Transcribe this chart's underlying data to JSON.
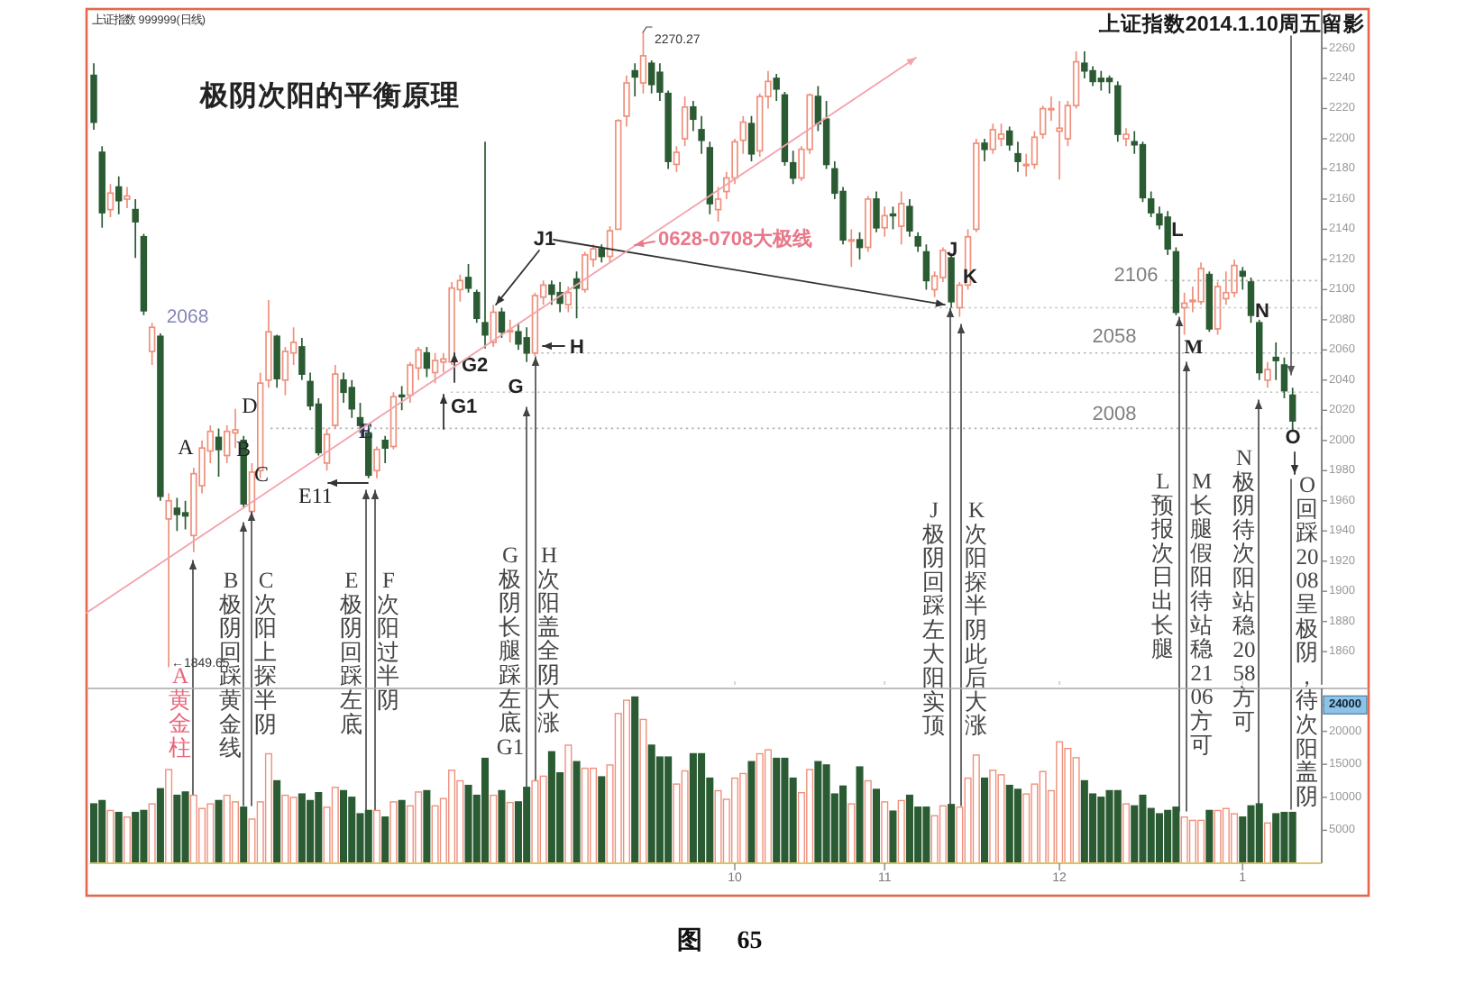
{
  "chart_data": [
    {
      "type": "candlestick",
      "title": "极阴次阳的平衡原理",
      "categories": [
        null,
        null,
        null,
        null,
        null,
        null,
        null,
        null,
        null,
        null,
        null,
        null,
        null,
        null,
        null,
        null,
        null,
        null,
        null,
        null,
        null,
        null,
        null,
        null,
        null,
        null,
        null,
        null,
        null,
        null,
        null,
        null,
        null,
        null,
        null,
        null,
        null,
        null,
        null,
        null,
        null,
        null,
        null,
        null,
        null,
        null,
        null,
        null,
        null,
        null,
        null,
        null,
        null,
        null,
        null,
        null,
        null,
        null,
        null,
        null,
        null,
        null,
        null,
        null,
        null,
        null,
        null,
        null,
        null,
        null,
        null,
        null,
        null,
        null,
        null,
        null,
        null,
        "10",
        null,
        null,
        null,
        null,
        null,
        null,
        null,
        null,
        null,
        null,
        null,
        null,
        null,
        null,
        null,
        null,
        null,
        "11",
        null,
        null,
        null,
        null,
        null,
        null,
        null,
        null,
        null,
        null,
        null,
        null,
        null,
        null,
        null,
        null,
        null,
        null,
        null,
        null,
        "12",
        null,
        null,
        null,
        null,
        null,
        null,
        null,
        null,
        null,
        null,
        null,
        null,
        null,
        null,
        null,
        null,
        null,
        null,
        null,
        null,
        null,
        "1",
        null,
        null,
        null,
        null,
        null,
        null,
        null,
        null,
        null
      ],
      "ohlc": [
        [
          2242,
          2250,
          2206,
          2211
        ],
        [
          2191,
          2195,
          2141,
          2151
        ],
        [
          2153,
          2170,
          2148,
          2164
        ],
        [
          2168,
          2175,
          2150,
          2159
        ],
        [
          2160,
          2168,
          2154,
          2162
        ],
        [
          2153,
          2160,
          2121,
          2145
        ],
        [
          2135,
          2137,
          2083,
          2086
        ],
        [
          2059,
          2078,
          2050,
          2075
        ],
        [
          2069,
          2071,
          1960,
          1963
        ],
        [
          1948,
          1965,
          1849.65,
          1960
        ],
        [
          1955,
          1962,
          1940,
          1951
        ],
        [
          1952,
          1960,
          1941,
          1950
        ],
        [
          1937,
          1982,
          1926,
          1978
        ],
        [
          1970,
          2000,
          1965,
          1995
        ],
        [
          1993,
          2010,
          1985,
          2006
        ],
        [
          2002,
          2008,
          1976,
          1994
        ],
        [
          1990,
          2010,
          1985,
          2006
        ],
        [
          2005,
          2021,
          1995,
          2007
        ],
        [
          2000,
          2003,
          1955,
          1958
        ],
        [
          1953,
          1985,
          1950,
          1979
        ],
        [
          1980,
          2045,
          1975,
          2038
        ],
        [
          2040,
          2093,
          2035,
          2072
        ],
        [
          2069,
          2070,
          2035,
          2041
        ],
        [
          2040,
          2062,
          2030,
          2059
        ],
        [
          2058,
          2075,
          2050,
          2065
        ],
        [
          2062,
          2068,
          2040,
          2044
        ],
        [
          2039,
          2045,
          2020,
          2023
        ],
        [
          2024,
          2028,
          1990,
          1992
        ],
        [
          1985,
          2008,
          1980,
          2004
        ],
        [
          2010,
          2050,
          2008,
          2044
        ],
        [
          2040,
          2045,
          2025,
          2032
        ],
        [
          2035,
          2040,
          2015,
          2021
        ],
        [
          2015,
          2025,
          2005,
          2010
        ],
        [
          2005,
          2010,
          1975,
          1977
        ],
        [
          1980,
          1996,
          1975,
          1994
        ],
        [
          2000,
          2003,
          1985,
          1995
        ],
        [
          1996,
          2032,
          1994,
          2029
        ],
        [
          2030,
          2036,
          2020,
          2029
        ],
        [
          2030,
          2052,
          2025,
          2050
        ],
        [
          2048,
          2062,
          2040,
          2060
        ],
        [
          2058,
          2062,
          2042,
          2048
        ],
        [
          2045,
          2058,
          2038,
          2053
        ],
        [
          2052,
          2058,
          2045,
          2054
        ],
        [
          2052,
          2105,
          2050,
          2101
        ],
        [
          2100,
          2110,
          2092,
          2106
        ],
        [
          2108,
          2117,
          2098,
          2101
        ],
        [
          2098,
          2100,
          2078,
          2081
        ],
        [
          2078,
          2198,
          2061,
          2070
        ],
        [
          2065,
          2090,
          2062,
          2085
        ],
        [
          2085,
          2088,
          2068,
          2072
        ],
        [
          2072,
          2080,
          2065,
          2073
        ],
        [
          2072,
          2078,
          2060,
          2064
        ],
        [
          2068,
          2075,
          2052,
          2058
        ],
        [
          2058,
          2098,
          2056,
          2096
        ],
        [
          2095,
          2106,
          2090,
          2103
        ],
        [
          2103,
          2106,
          2090,
          2097
        ],
        [
          2098,
          2105,
          2085,
          2091
        ],
        [
          2090,
          2102,
          2085,
          2098
        ],
        [
          2107,
          2112,
          2081,
          2101
        ],
        [
          2100,
          2125,
          2098,
          2123
        ],
        [
          2120,
          2130,
          2115,
          2127
        ],
        [
          2127,
          2130,
          2118,
          2122
        ],
        [
          2122,
          2142,
          2118,
          2139
        ],
        [
          2140,
          2213,
          2140,
          2212
        ],
        [
          2215,
          2242,
          2208,
          2237
        ],
        [
          2245,
          2250,
          2228,
          2241
        ],
        [
          2237,
          2270.27,
          2230,
          2255
        ],
        [
          2250,
          2252,
          2230,
          2236
        ],
        [
          2244,
          2250,
          2225,
          2231
        ],
        [
          2230,
          2232,
          2180,
          2185
        ],
        [
          2183,
          2195,
          2178,
          2191
        ],
        [
          2200,
          2228,
          2195,
          2221
        ],
        [
          2221,
          2225,
          2205,
          2213
        ],
        [
          2206,
          2215,
          2190,
          2199
        ],
        [
          2194,
          2198,
          2150,
          2157
        ],
        [
          2153,
          2168,
          2145,
          2160
        ],
        [
          2165,
          2178,
          2160,
          2174
        ],
        [
          2174,
          2200,
          2170,
          2198
        ],
        [
          2199,
          2215,
          2190,
          2211
        ],
        [
          2210,
          2215,
          2185,
          2190
        ],
        [
          2192,
          2230,
          2188,
          2228
        ],
        [
          2228,
          2245,
          2220,
          2238
        ],
        [
          2240,
          2243,
          2225,
          2233
        ],
        [
          2229,
          2231,
          2182,
          2185
        ],
        [
          2184,
          2192,
          2170,
          2174
        ],
        [
          2174,
          2195,
          2172,
          2193
        ],
        [
          2193,
          2230,
          2190,
          2229
        ],
        [
          2228,
          2235,
          2205,
          2210
        ],
        [
          2213,
          2225,
          2180,
          2183
        ],
        [
          2180,
          2185,
          2160,
          2164
        ],
        [
          2165,
          2168,
          2130,
          2133
        ],
        [
          2133,
          2140,
          2115,
          2133
        ],
        [
          2133,
          2138,
          2120,
          2128
        ],
        [
          2128,
          2162,
          2125,
          2160
        ],
        [
          2160,
          2165,
          2138,
          2141
        ],
        [
          2141,
          2155,
          2135,
          2149
        ],
        [
          2150,
          2155,
          2140,
          2149
        ],
        [
          2142,
          2165,
          2130,
          2157
        ],
        [
          2155,
          2160,
          2135,
          2139
        ],
        [
          2135,
          2138,
          2125,
          2129
        ],
        [
          2125,
          2130,
          2100,
          2106
        ],
        [
          2100,
          2112,
          2095,
          2109
        ],
        [
          2108,
          2128,
          2105,
          2126
        ],
        [
          2121,
          2124,
          2088,
          2092
        ],
        [
          2088,
          2105,
          2082,
          2103
        ],
        [
          2103,
          2140,
          2100,
          2135
        ],
        [
          2140,
          2200,
          2138,
          2197
        ],
        [
          2197,
          2200,
          2185,
          2193
        ],
        [
          2193,
          2210,
          2190,
          2206
        ],
        [
          2200,
          2210,
          2195,
          2203
        ],
        [
          2205,
          2208,
          2192,
          2196
        ],
        [
          2190,
          2198,
          2178,
          2185
        ],
        [
          2183,
          2190,
          2175,
          2183
        ],
        [
          2183,
          2205,
          2180,
          2201
        ],
        [
          2203,
          2222,
          2200,
          2220
        ],
        [
          2220,
          2228,
          2212,
          2220
        ],
        [
          2205,
          2225,
          2173,
          2207
        ],
        [
          2200,
          2225,
          2195,
          2222
        ],
        [
          2222,
          2258,
          2220,
          2251
        ],
        [
          2250,
          2258,
          2240,
          2245
        ],
        [
          2245,
          2248,
          2235,
          2238
        ],
        [
          2240,
          2245,
          2232,
          2238
        ],
        [
          2240,
          2242,
          2230,
          2238
        ],
        [
          2235,
          2238,
          2198,
          2203
        ],
        [
          2200,
          2207,
          2195,
          2203
        ],
        [
          2198,
          2205,
          2190,
          2196
        ],
        [
          2196,
          2198,
          2158,
          2161
        ],
        [
          2160,
          2165,
          2148,
          2151
        ],
        [
          2150,
          2155,
          2140,
          2143
        ],
        [
          2148,
          2152,
          2123,
          2127
        ],
        [
          2125,
          2128,
          2083,
          2085
        ],
        [
          2088,
          2098,
          2070,
          2091
        ],
        [
          2092,
          2102,
          2085,
          2093
        ],
        [
          2092,
          2118,
          2090,
          2114
        ],
        [
          2110,
          2112,
          2072,
          2074
        ],
        [
          2074,
          2105,
          2070,
          2102
        ],
        [
          2094,
          2112,
          2090,
          2098
        ],
        [
          2098,
          2120,
          2095,
          2116
        ],
        [
          2112,
          2115,
          2100,
          2109
        ],
        [
          2105,
          2108,
          2078,
          2083
        ],
        [
          2078,
          2080,
          2040,
          2045
        ],
        [
          2040,
          2052,
          2035,
          2047
        ],
        [
          2055,
          2065,
          2040,
          2053
        ],
        [
          2050,
          2055,
          2028,
          2033
        ],
        [
          2030,
          2035,
          2007,
          2013
        ],
        null,
        null,
        null
      ],
      "colors": [
        "#2b5b33",
        "#2b5b33",
        "#ef907c",
        "#2b5b33",
        "#ef907c",
        "#2b5b33",
        "#2b5b33",
        "#ef907c",
        "#2b5b33",
        "#ef907c",
        "#2b5b33",
        "#2b5b33",
        "#ef907c",
        "#ef907c",
        "#ef907c",
        "#2b5b33",
        "#ef907c",
        "#ef907c",
        "#2b5b33",
        "#ef907c",
        "#ef907c",
        "#ef907c",
        "#2b5b33",
        "#ef907c",
        "#ef907c",
        "#2b5b33",
        "#2b5b33",
        "#2b5b33",
        "#ef907c",
        "#ef907c",
        "#2b5b33",
        "#2b5b33",
        "#2b5b33",
        "#2b5b33",
        "#ef907c",
        "#2b5b33",
        "#ef907c",
        "#2b5b33",
        "#ef907c",
        "#ef907c",
        "#2b5b33",
        "#ef907c",
        "#ef907c",
        "#ef907c",
        "#ef907c",
        "#2b5b33",
        "#2b5b33",
        "#2b5b33",
        "#ef907c",
        "#2b5b33",
        "#ef907c",
        "#2b5b33",
        "#2b5b33",
        "#ef907c",
        "#ef907c",
        "#2b5b33",
        "#2b5b33",
        "#ef907c",
        "#2b5b33",
        "#ef907c",
        "#ef907c",
        "#2b5b33",
        "#ef907c",
        "#ef907c",
        "#ef907c",
        "#2b5b33",
        "#ef907c",
        "#2b5b33",
        "#2b5b33",
        "#2b5b33",
        "#ef907c",
        "#ef907c",
        "#2b5b33",
        "#2b5b33",
        "#2b5b33",
        "#ef907c",
        "#ef907c",
        "#ef907c",
        "#ef907c",
        "#2b5b33",
        "#ef907c",
        "#ef907c",
        "#2b5b33",
        "#2b5b33",
        "#2b5b33",
        "#ef907c",
        "#ef907c",
        "#2b5b33",
        "#2b5b33",
        "#2b5b33",
        "#2b5b33",
        "#ef907c",
        "#2b5b33",
        "#ef907c",
        "#2b5b33",
        "#ef907c",
        "#2b5b33",
        "#ef907c",
        "#2b5b33",
        "#2b5b33",
        "#2b5b33",
        "#ef907c",
        "#ef907c",
        "#2b5b33",
        "#ef907c",
        "#ef907c",
        "#ef907c",
        "#2b5b33",
        "#ef907c",
        "#ef907c",
        "#2b5b33",
        "#2b5b33",
        "#ef907c",
        "#ef907c",
        "#ef907c",
        "#ef907c",
        "#ef907c",
        "#ef907c",
        "#ef907c",
        "#2b5b33",
        "#2b5b33",
        "#2b5b33",
        "#2b5b33",
        "#2b5b33",
        "#ef907c",
        "#2b5b33",
        "#2b5b33",
        "#2b5b33",
        "#2b5b33",
        "#2b5b33",
        "#2b5b33",
        "#ef907c",
        "#ef907c",
        "#ef907c",
        "#2b5b33",
        "#ef907c",
        "#ef907c",
        "#ef907c",
        "#2b5b33",
        "#2b5b33",
        "#2b5b33",
        "#ef907c",
        "#2b5b33",
        "#2b5b33",
        "#2b5b33",
        null,
        null,
        null
      ],
      "ylim": [
        1838,
        2286
      ],
      "yticks": [
        1860,
        1880,
        1900,
        1920,
        1940,
        1960,
        1980,
        2000,
        2020,
        2040,
        2060,
        2080,
        2100,
        2120,
        2140,
        2160,
        2180,
        2200,
        2220,
        2240,
        2260
      ],
      "tick_labels": "y",
      "ref_lines": [
        {
          "axis": "y",
          "value": 2106,
          "label": "2106",
          "color": "#b4b4b4",
          "line_style": "dotted"
        },
        {
          "axis": "y",
          "value": 2058,
          "label": "2058",
          "color": "#b4b4b4",
          "line_style": "dotted"
        },
        {
          "axis": "y",
          "value": 2008,
          "label": "2008",
          "color": "#b4b4b4",
          "line_style": "dotted"
        },
        {
          "axis": "y",
          "value": 2088,
          "color": "#c4c4c4",
          "line_style": "dotted"
        },
        {
          "axis": "y",
          "value": 2032,
          "color": "#c4c4c4",
          "line_style": "dotted"
        }
      ],
      "annotations": [
        "上证指数 999999(日线)",
        "上证指数2014.1.10周五留影",
        "2270.27",
        "←1849.65",
        "2068",
        "A",
        "B",
        "C",
        "D",
        "E",
        "E11",
        "G1",
        "G2",
        "G",
        "H",
        {
          "text": "J1",
          "y": 2090
        },
        "0628-0708大极线",
        "J",
        "K",
        "L",
        "M",
        "N",
        "O",
        "A黄金柱",
        "B极阴回踩黄金线",
        "C次阳上探半阴",
        "E极阴回踩左底",
        "F次阳过半阴",
        "G极阴长腿踩左底G1",
        "H次阳盖全阴大涨",
        "J极阴回踩左大阳实顶",
        "K次阳探半阴此后大涨",
        "L预报次日出长腿",
        "M长腿假阳待站稳2106方可",
        "N极阴待次阳站稳2058方可",
        "O回踩2008呈极阴，待次阳盖阴",
        "图 65"
      ]
    },
    {
      "type": "bar",
      "categories": [
        null,
        null,
        null,
        null,
        null,
        null,
        null,
        null,
        null,
        null,
        null,
        null,
        null,
        null,
        null,
        null,
        null,
        null,
        null,
        null,
        null,
        null,
        null,
        null,
        null,
        null,
        null,
        null,
        null,
        null,
        null,
        null,
        null,
        null,
        null,
        null,
        null,
        null,
        null,
        null,
        null,
        null,
        null,
        null,
        null,
        null,
        null,
        null,
        null,
        null,
        null,
        null,
        null,
        null,
        null,
        null,
        null,
        null,
        null,
        null,
        null,
        null,
        null,
        null,
        null,
        null,
        null,
        null,
        null,
        null,
        null,
        null,
        null,
        null,
        null,
        null,
        null,
        "10",
        null,
        null,
        null,
        null,
        null,
        null,
        null,
        null,
        null,
        null,
        null,
        null,
        null,
        null,
        null,
        null,
        null,
        "11",
        null,
        null,
        null,
        null,
        null,
        null,
        null,
        null,
        null,
        null,
        null,
        null,
        null,
        null,
        null,
        null,
        null,
        null,
        null,
        null,
        "12",
        null,
        null,
        null,
        null,
        null,
        null,
        null,
        null,
        null,
        null,
        null,
        null,
        null,
        null,
        null,
        null,
        null,
        null,
        null,
        null,
        null,
        "1",
        null,
        null,
        null,
        null,
        null,
        null,
        null,
        null,
        null
      ],
      "values": [
        9000,
        9500,
        8000,
        7700,
        7000,
        7700,
        8000,
        9000,
        11300,
        14200,
        10300,
        10800,
        10300,
        8300,
        9000,
        9500,
        10300,
        9300,
        8500,
        6700,
        9300,
        16600,
        12500,
        10300,
        10000,
        10500,
        9500,
        10700,
        8500,
        11500,
        11000,
        10000,
        7500,
        8000,
        8000,
        7000,
        9300,
        9500,
        8700,
        10800,
        11000,
        8700,
        9800,
        14100,
        12500,
        11800,
        10300,
        15900,
        10300,
        11000,
        9200,
        9300,
        11500,
        12500,
        13200,
        16900,
        13700,
        17900,
        15400,
        14400,
        14400,
        13100,
        14900,
        22700,
        24700,
        25200,
        21800,
        17900,
        16100,
        16100,
        12000,
        14000,
        16600,
        16600,
        12900,
        11000,
        9700,
        12900,
        13600,
        15400,
        16600,
        17200,
        15900,
        15900,
        12900,
        10700,
        14200,
        15400,
        14900,
        10500,
        11700,
        9000,
        14600,
        12500,
        11200,
        9300,
        7900,
        9500,
        10300,
        8500,
        8500,
        7200,
        8700,
        8900,
        8500,
        12900,
        16400,
        12900,
        14100,
        13400,
        11800,
        11200,
        10500,
        12000,
        13900,
        11000,
        18400,
        17400,
        16000,
        12500,
        10500,
        10000,
        11000,
        11000,
        9000,
        8700,
        10300,
        8300,
        7500,
        8000,
        8500,
        7000,
        6500,
        6500,
        8000,
        8000,
        8300,
        7500,
        7000,
        8700,
        9000,
        6100,
        7500,
        7700,
        7700,
        null,
        null,
        null
      ],
      "colors": [
        "#2b5b33",
        "#2b5b33",
        "#ef907c",
        "#2b5b33",
        "#ef907c",
        "#2b5b33",
        "#2b5b33",
        "#ef907c",
        "#2b5b33",
        "#ef907c",
        "#2b5b33",
        "#2b5b33",
        "#ef907c",
        "#ef907c",
        "#ef907c",
        "#2b5b33",
        "#ef907c",
        "#ef907c",
        "#2b5b33",
        "#ef907c",
        "#ef907c",
        "#ef907c",
        "#2b5b33",
        "#ef907c",
        "#ef907c",
        "#2b5b33",
        "#2b5b33",
        "#2b5b33",
        "#ef907c",
        "#ef907c",
        "#2b5b33",
        "#2b5b33",
        "#2b5b33",
        "#2b5b33",
        "#ef907c",
        "#2b5b33",
        "#ef907c",
        "#2b5b33",
        "#ef907c",
        "#ef907c",
        "#2b5b33",
        "#ef907c",
        "#ef907c",
        "#ef907c",
        "#ef907c",
        "#2b5b33",
        "#2b5b33",
        "#2b5b33",
        "#ef907c",
        "#2b5b33",
        "#ef907c",
        "#2b5b33",
        "#2b5b33",
        "#ef907c",
        "#ef907c",
        "#2b5b33",
        "#2b5b33",
        "#ef907c",
        "#2b5b33",
        "#ef907c",
        "#ef907c",
        "#2b5b33",
        "#ef907c",
        "#ef907c",
        "#ef907c",
        "#2b5b33",
        "#ef907c",
        "#2b5b33",
        "#2b5b33",
        "#2b5b33",
        "#ef907c",
        "#ef907c",
        "#2b5b33",
        "#2b5b33",
        "#2b5b33",
        "#ef907c",
        "#ef907c",
        "#ef907c",
        "#ef907c",
        "#2b5b33",
        "#ef907c",
        "#ef907c",
        "#2b5b33",
        "#2b5b33",
        "#2b5b33",
        "#ef907c",
        "#ef907c",
        "#2b5b33",
        "#2b5b33",
        "#2b5b33",
        "#2b5b33",
        "#ef907c",
        "#2b5b33",
        "#ef907c",
        "#2b5b33",
        "#ef907c",
        "#2b5b33",
        "#ef907c",
        "#2b5b33",
        "#2b5b33",
        "#2b5b33",
        "#ef907c",
        "#ef907c",
        "#2b5b33",
        "#ef907c",
        "#ef907c",
        "#ef907c",
        "#2b5b33",
        "#ef907c",
        "#ef907c",
        "#2b5b33",
        "#2b5b33",
        "#ef907c",
        "#ef907c",
        "#ef907c",
        "#ef907c",
        "#ef907c",
        "#ef907c",
        "#ef907c",
        "#2b5b33",
        "#2b5b33",
        "#2b5b33",
        "#2b5b33",
        "#2b5b33",
        "#ef907c",
        "#2b5b33",
        "#2b5b33",
        "#2b5b33",
        "#2b5b33",
        "#2b5b33",
        "#2b5b33",
        "#ef907c",
        "#ef907c",
        "#ef907c",
        "#2b5b33",
        "#ef907c",
        "#ef907c",
        "#ef907c",
        "#2b5b33",
        "#2b5b33",
        "#2b5b33",
        "#ef907c",
        "#2b5b33",
        "#2b5b33",
        "#2b5b33",
        null,
        null,
        null
      ],
      "ylim": [
        0,
        26500
      ],
      "yticks": [
        5000,
        10000,
        15000,
        20000,
        24000
      ]
    }
  ]
}
